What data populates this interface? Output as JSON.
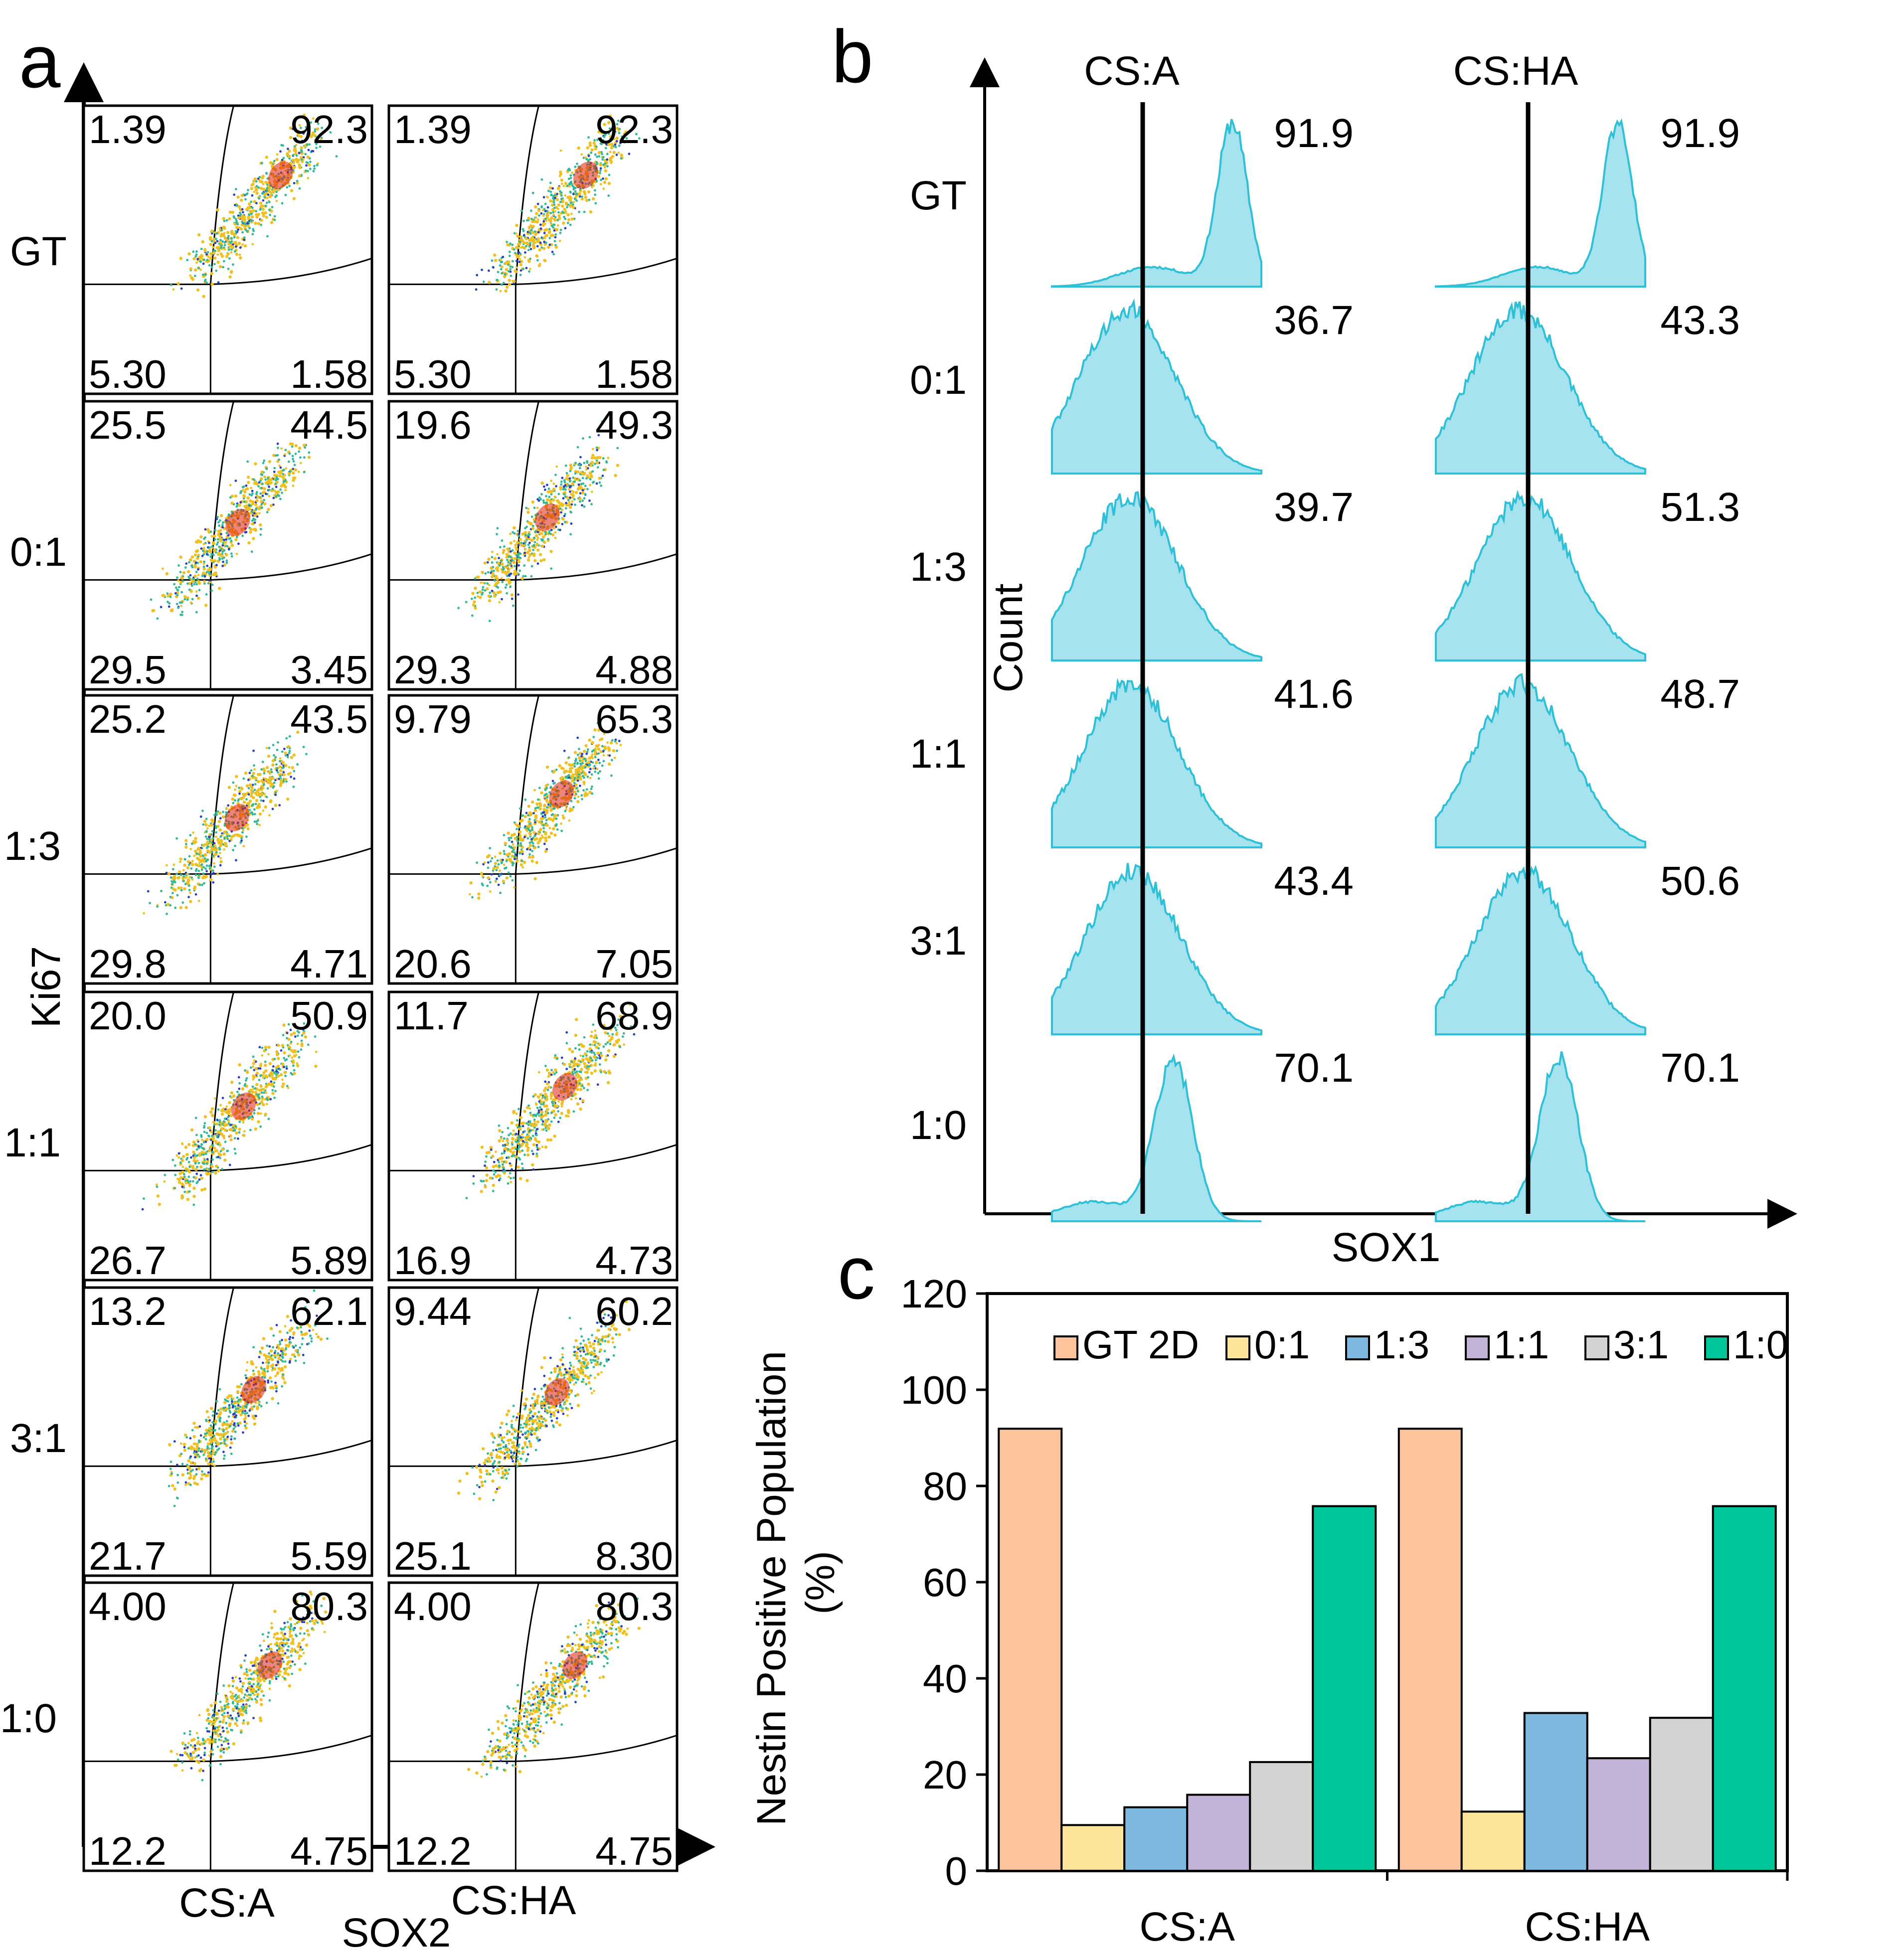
{
  "colors": {
    "hist_fill": "#a6e3ee",
    "hist_line": "#2ec0d6",
    "dot_low": "#2a3fc0",
    "dot_mid": "#2fb89a",
    "dot_high": "#f0c020",
    "dot_peak": "#e02010"
  },
  "panel_a": {
    "letter": "a",
    "ylabel": "Ki67",
    "xlabel": "SOX2",
    "columns": [
      "CS:A",
      "CS:HA"
    ],
    "rows": [
      "GT",
      "0:1",
      "1:3",
      "1:1",
      "3:1",
      "1:0"
    ],
    "quadrants": [
      [
        [
          "1.39",
          "92.3",
          "5.30",
          "1.58"
        ],
        [
          "1.39",
          "92.3",
          "5.30",
          "1.58"
        ]
      ],
      [
        [
          "25.5",
          "44.5",
          "29.5",
          "3.45"
        ],
        [
          "19.6",
          "49.3",
          "29.3",
          "4.88"
        ]
      ],
      [
        [
          "25.2",
          "43.5",
          "29.8",
          "4.71"
        ],
        [
          "9.79",
          "65.3",
          "20.6",
          "7.05"
        ]
      ],
      [
        [
          "20.0",
          "50.9",
          "26.7",
          "5.89"
        ],
        [
          "11.7",
          "68.9",
          "16.9",
          "4.73"
        ]
      ],
      [
        [
          "13.2",
          "62.1",
          "21.7",
          "5.59"
        ],
        [
          "9.44",
          "60.2",
          "25.1",
          "8.30"
        ]
      ],
      [
        [
          "4.00",
          "80.3",
          "12.2",
          "4.75"
        ],
        [
          "4.00",
          "80.3",
          "12.2",
          "4.75"
        ]
      ]
    ]
  },
  "panel_b": {
    "letter": "b",
    "ylabel": "Count",
    "xlabel": "SOX1",
    "columns": [
      "CS:A",
      "CS:HA"
    ],
    "rows": [
      "GT",
      "0:1",
      "1:3",
      "1:1",
      "3:1",
      "1:0"
    ],
    "values": [
      [
        "91.9",
        "91.9"
      ],
      [
        "36.7",
        "43.3"
      ],
      [
        "39.7",
        "51.3"
      ],
      [
        "41.6",
        "48.7"
      ],
      [
        "43.4",
        "50.6"
      ],
      [
        "70.1",
        "70.1"
      ]
    ]
  },
  "chart_data": {
    "type": "bar",
    "panel_letter": "c",
    "title": "",
    "xlabel": "",
    "ylabel": "Nestin Positive Population (%)",
    "ylim": [
      0,
      120
    ],
    "yticks": [
      0,
      20,
      40,
      60,
      80,
      100,
      120
    ],
    "categories": [
      "CS:A",
      "CS:HA"
    ],
    "legend_position": "top",
    "series": [
      {
        "name": "GT 2D",
        "color": "#fbc49c",
        "values": [
          91.9,
          91.9
        ]
      },
      {
        "name": "0:1",
        "color": "#fde59b",
        "values": [
          9.5,
          12.3
        ]
      },
      {
        "name": "1:3",
        "color": "#7fb9e0",
        "values": [
          13.2,
          32.8
        ]
      },
      {
        "name": "1:1",
        "color": "#c2b3d9",
        "values": [
          15.8,
          23.4
        ]
      },
      {
        "name": "3:1",
        "color": "#d3d3d3",
        "values": [
          22.6,
          31.8
        ]
      },
      {
        "name": "1:0",
        "color": "#00c599",
        "values": [
          75.8,
          75.8
        ]
      }
    ]
  }
}
